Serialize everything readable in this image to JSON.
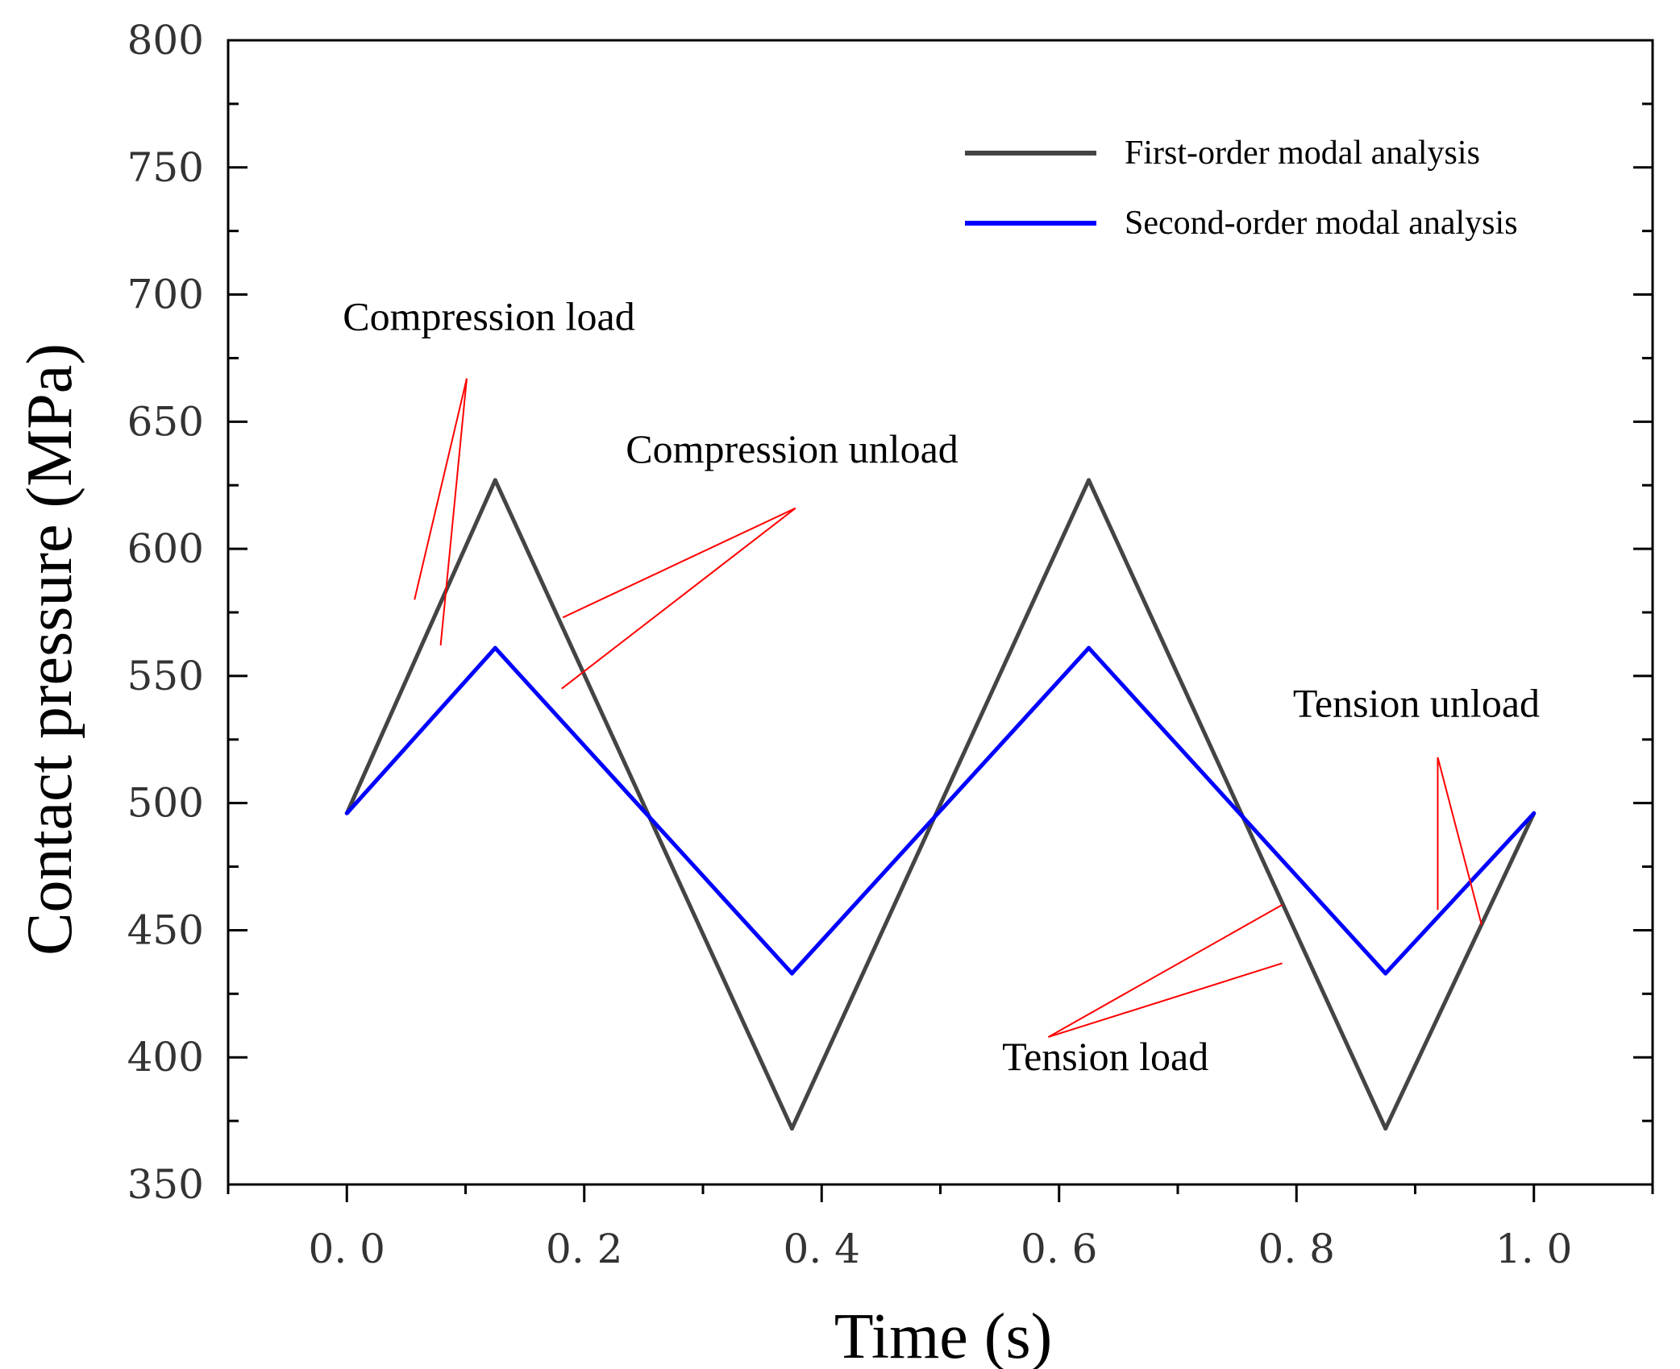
{
  "chart_data": {
    "type": "line",
    "title": "",
    "xlabel": "Time (s)",
    "ylabel": "Contact pressure (MPa)",
    "xlim": [
      -0.1,
      1.1
    ],
    "ylim": [
      350,
      800
    ],
    "x_ticks": [
      0.0,
      0.2,
      0.4,
      0.6,
      0.8,
      1.0
    ],
    "x_tick_labels": [
      "0. 0",
      "0. 2",
      "0. 4",
      "0. 6",
      "0. 8",
      "1. 0"
    ],
    "y_ticks": [
      350,
      400,
      450,
      500,
      550,
      600,
      650,
      700,
      750,
      800
    ],
    "y_tick_labels": [
      "350",
      "400",
      "450",
      "500",
      "550",
      "600",
      "650",
      "700",
      "750",
      "800"
    ],
    "grid": false,
    "legend_position": "top-right",
    "series": [
      {
        "name": "First-order modal analysis",
        "color": "#444444",
        "x": [
          0.0,
          0.125,
          0.375,
          0.625,
          0.875,
          1.0
        ],
        "y": [
          496,
          627,
          372,
          627,
          372,
          496
        ]
      },
      {
        "name": "Second-order modal analysis",
        "color": "#0000ff",
        "x": [
          0.0,
          0.125,
          0.375,
          0.625,
          0.875,
          1.0
        ],
        "y": [
          496,
          561,
          433,
          561,
          433,
          496
        ]
      }
    ],
    "annotations": [
      {
        "text": "Compression load",
        "text_at": [
          -0.0034,
          686
        ],
        "anchor": [
          0.101,
          667
        ],
        "targets": [
          [
            0.057,
            580
          ],
          [
            0.079,
            562
          ]
        ]
      },
      {
        "text": "Compression unload",
        "text_at": [
          0.235,
          634
        ],
        "anchor": [
          0.378,
          616
        ],
        "targets": [
          [
            0.182,
            573
          ],
          [
            0.181,
            545
          ]
        ]
      },
      {
        "text": "Tension unload",
        "text_at": [
          0.797,
          534
        ],
        "anchor": [
          0.919,
          518
        ],
        "targets": [
          [
            0.919,
            458
          ],
          [
            0.956,
            452
          ]
        ]
      },
      {
        "text": "Tension load",
        "text_at": [
          0.552,
          395
        ],
        "anchor": [
          0.591,
          408
        ],
        "targets": [
          [
            0.788,
            460
          ],
          [
            0.788,
            437
          ]
        ]
      }
    ]
  }
}
